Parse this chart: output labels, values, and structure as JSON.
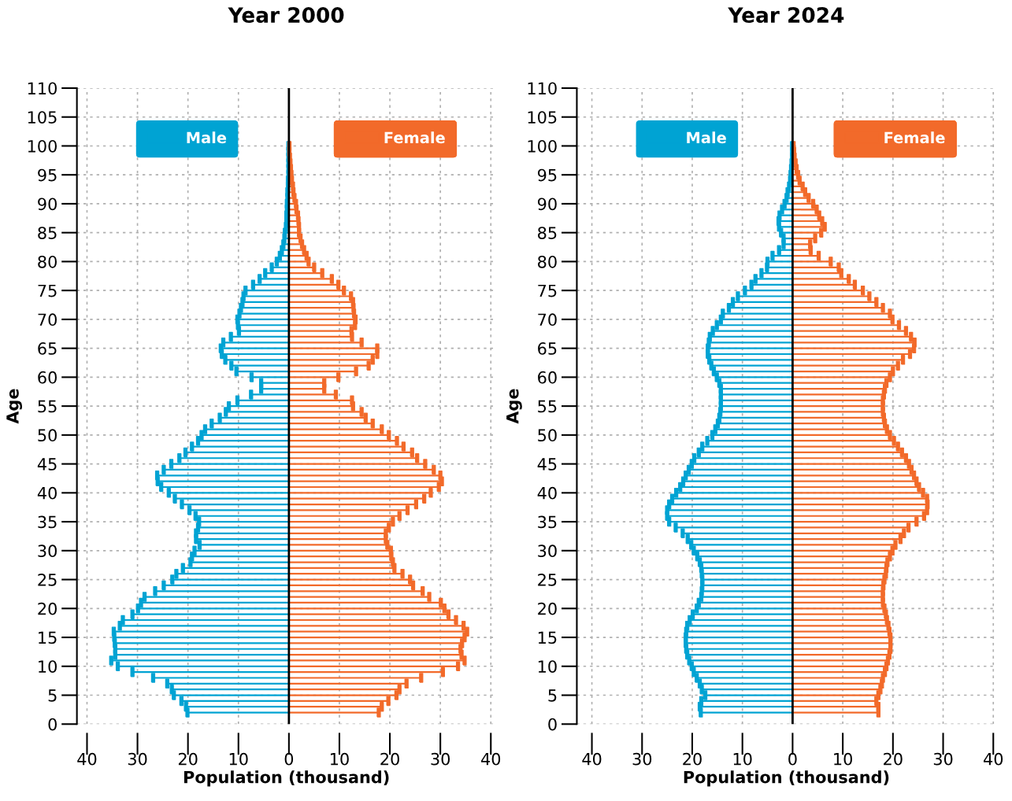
{
  "chart_data": [
    {
      "type": "lollipop",
      "orientation": "horizontal",
      "title": "Year 2000",
      "xlabel": "Population (thousand)",
      "ylabel": "Age",
      "x": [
        2,
        3,
        4,
        5,
        6,
        7,
        8,
        9,
        10,
        11,
        12,
        13,
        14,
        15,
        16,
        17,
        18,
        19,
        20,
        21,
        22,
        23,
        24,
        25,
        26,
        27,
        28,
        29,
        30,
        31,
        32,
        33,
        34,
        35,
        36,
        37,
        38,
        39,
        40,
        41,
        42,
        43,
        44,
        45,
        46,
        47,
        48,
        49,
        50,
        51,
        52,
        53,
        54,
        55,
        56,
        57,
        58,
        59,
        60,
        61,
        62,
        63,
        64,
        65,
        66,
        67,
        68,
        69,
        70,
        71,
        72,
        73,
        74,
        75,
        76,
        77,
        78,
        79,
        80,
        81,
        82,
        83,
        84,
        85,
        86,
        87,
        88,
        89,
        90,
        91,
        92,
        93,
        94,
        95,
        96,
        97,
        98,
        99,
        100
      ],
      "series": [
        {
          "name": "Male",
          "color": "#00a3d3",
          "values": [
            -20.1,
            -20.4,
            -21.3,
            -22.8,
            -23.2,
            -24.1,
            -26.9,
            -31.0,
            -33.9,
            -35.2,
            -34.4,
            -34.4,
            -34.5,
            -34.6,
            -34.7,
            -33.5,
            -32.9,
            -31.0,
            -29.9,
            -29.3,
            -28.6,
            -26.5,
            -24.8,
            -23.1,
            -22.3,
            -21.0,
            -19.5,
            -19.2,
            -18.7,
            -17.7,
            -18.4,
            -18.4,
            -18.0,
            -17.8,
            -18.5,
            -19.7,
            -21.2,
            -22.6,
            -23.8,
            -25.3,
            -26.0,
            -26.1,
            -24.8,
            -23.3,
            -21.7,
            -20.5,
            -19.2,
            -18.0,
            -17.3,
            -16.6,
            -15.3,
            -13.7,
            -12.5,
            -11.9,
            -10.2,
            -7.5,
            -5.5,
            -5.5,
            -7.4,
            -10.4,
            -11.4,
            -12.6,
            -13.3,
            -13.5,
            -13.0,
            -11.5,
            -9.9,
            -10.1,
            -10.2,
            -9.8,
            -9.5,
            -9.2,
            -9.0,
            -8.6,
            -7.1,
            -5.8,
            -4.7,
            -3.4,
            -2.4,
            -1.8,
            -1.4,
            -1.1,
            -0.9,
            -0.8,
            -0.6,
            -0.5,
            -0.5,
            -0.4,
            -0.4,
            -0.3,
            -0.3,
            -0.2,
            -0.2,
            -0.1,
            -0.1,
            -0.1,
            -0.1,
            -0.1,
            -0.1
          ]
        },
        {
          "name": "Female",
          "color": "#f26a2a",
          "values": [
            17.8,
            18.4,
            19.7,
            21.3,
            21.9,
            23.3,
            26.2,
            30.5,
            33.5,
            34.8,
            34.2,
            34.0,
            34.3,
            34.8,
            35.3,
            34.6,
            33.1,
            31.6,
            30.8,
            30.1,
            27.8,
            26.5,
            24.6,
            24.0,
            22.5,
            20.9,
            20.6,
            20.3,
            20.2,
            19.5,
            19.2,
            19.2,
            19.8,
            20.6,
            21.9,
            23.5,
            25.2,
            26.8,
            28.1,
            29.7,
            30.3,
            30.0,
            28.7,
            27.0,
            25.4,
            24.4,
            22.7,
            21.4,
            19.8,
            18.4,
            16.6,
            15.2,
            14.4,
            12.7,
            12.5,
            9.3,
            7.0,
            7.0,
            9.8,
            13.3,
            15.8,
            16.6,
            17.5,
            17.5,
            14.4,
            12.5,
            12.4,
            13.1,
            13.2,
            12.9,
            12.8,
            12.7,
            12.3,
            10.9,
            9.8,
            8.5,
            6.6,
            5.0,
            3.9,
            3.5,
            3.0,
            2.6,
            2.3,
            2.0,
            2.0,
            1.9,
            1.8,
            1.5,
            1.4,
            1.1,
            0.9,
            0.8,
            0.6,
            0.5,
            0.4,
            0.3,
            0.2,
            0.1,
            0.1
          ]
        }
      ],
      "xlim": [
        -42,
        41
      ],
      "ylim": [
        0,
        110
      ],
      "xticks": [
        {
          "value": -40,
          "label": "40"
        },
        {
          "value": -30,
          "label": "30"
        },
        {
          "value": -20,
          "label": "20"
        },
        {
          "value": -10,
          "label": "10"
        },
        0,
        10,
        20,
        30,
        40
      ],
      "yticks": [
        0,
        5,
        10,
        15,
        20,
        25,
        30,
        35,
        40,
        45,
        50,
        55,
        60,
        65,
        70,
        75,
        80,
        85,
        90,
        95,
        100,
        105,
        110
      ],
      "ref_lines": [
        {
          "axis": "x",
          "value": 0,
          "color": "#000000"
        }
      ],
      "grid": true,
      "legend": "top"
    },
    {
      "type": "lollipop",
      "orientation": "horizontal",
      "title": "Year 2024",
      "xlabel": "Population (thousand)",
      "ylabel": "Age",
      "x": [
        2,
        3,
        4,
        5,
        6,
        7,
        8,
        9,
        10,
        11,
        12,
        13,
        14,
        15,
        16,
        17,
        18,
        19,
        20,
        21,
        22,
        23,
        24,
        25,
        26,
        27,
        28,
        29,
        30,
        31,
        32,
        33,
        34,
        35,
        36,
        37,
        38,
        39,
        40,
        41,
        42,
        43,
        44,
        45,
        46,
        47,
        48,
        49,
        50,
        51,
        52,
        53,
        54,
        55,
        56,
        57,
        58,
        59,
        60,
        61,
        62,
        63,
        64,
        65,
        66,
        67,
        68,
        69,
        70,
        71,
        72,
        73,
        74,
        75,
        76,
        77,
        78,
        79,
        80,
        81,
        82,
        83,
        84,
        85,
        86,
        87,
        88,
        89,
        90,
        91,
        92,
        93,
        94,
        95,
        96,
        97,
        98,
        99,
        100
      ],
      "series": [
        {
          "name": "Male",
          "color": "#00a3d3",
          "values": [
            -18.3,
            -18.5,
            -18.2,
            -17.4,
            -18.1,
            -18.5,
            -19.1,
            -19.7,
            -20.1,
            -20.6,
            -21.0,
            -21.2,
            -21.3,
            -21.3,
            -21.2,
            -21.0,
            -20.5,
            -19.9,
            -19.1,
            -18.7,
            -18.2,
            -18.1,
            -18.0,
            -18.0,
            -18.1,
            -18.2,
            -18.5,
            -19.0,
            -19.7,
            -20.2,
            -20.9,
            -21.9,
            -23.3,
            -24.6,
            -25.0,
            -25.0,
            -24.6,
            -24.0,
            -23.2,
            -22.4,
            -21.8,
            -21.3,
            -20.7,
            -20.1,
            -19.6,
            -18.7,
            -18.0,
            -17.0,
            -16.0,
            -15.4,
            -14.9,
            -14.6,
            -14.4,
            -14.3,
            -14.3,
            -14.3,
            -14.3,
            -14.6,
            -15.1,
            -15.7,
            -16.2,
            -16.6,
            -16.9,
            -16.9,
            -16.7,
            -16.5,
            -15.9,
            -15.1,
            -14.3,
            -13.9,
            -12.7,
            -11.9,
            -10.9,
            -9.5,
            -8.2,
            -7.4,
            -6.2,
            -5.1,
            -5.0,
            -4.0,
            -2.7,
            -1.8,
            -1.8,
            -2.3,
            -2.7,
            -2.8,
            -2.6,
            -2.1,
            -1.6,
            -1.2,
            -1.0,
            -0.7,
            -0.5,
            -0.4,
            -0.3,
            -0.2,
            -0.1,
            -0.1,
            -0.1
          ]
        },
        {
          "name": "Female",
          "color": "#f26a2a",
          "values": [
            17.1,
            17.1,
            16.7,
            17.1,
            17.5,
            17.8,
            18.0,
            18.4,
            18.7,
            19.0,
            19.3,
            19.5,
            19.5,
            19.5,
            19.3,
            19.1,
            18.8,
            18.6,
            18.3,
            18.0,
            18.0,
            18.0,
            18.1,
            18.3,
            18.6,
            18.7,
            18.9,
            19.4,
            19.9,
            20.5,
            21.5,
            22.2,
            23.1,
            24.7,
            26.2,
            26.8,
            26.9,
            26.8,
            26.0,
            25.2,
            24.7,
            24.2,
            23.7,
            23.2,
            22.6,
            21.8,
            21.0,
            20.2,
            19.4,
            18.8,
            18.4,
            18.2,
            18.0,
            18.0,
            18.0,
            18.2,
            18.4,
            18.7,
            19.4,
            20.0,
            21.0,
            22.0,
            23.4,
            24.2,
            24.3,
            23.6,
            22.6,
            21.2,
            19.9,
            19.4,
            18.0,
            16.7,
            15.3,
            14.0,
            12.4,
            11.2,
            9.7,
            9.2,
            7.6,
            5.2,
            3.6,
            3.5,
            4.5,
            5.7,
            6.4,
            5.9,
            5.3,
            4.8,
            4.1,
            3.2,
            2.5,
            2.0,
            1.4,
            1.1,
            0.8,
            0.6,
            0.4,
            0.3,
            0.2
          ]
        }
      ],
      "xlim": [
        -43,
        40.5
      ],
      "ylim": [
        0,
        110
      ],
      "xticks": [
        {
          "value": -40,
          "label": "40"
        },
        {
          "value": -30,
          "label": "30"
        },
        {
          "value": -20,
          "label": "20"
        },
        {
          "value": -10,
          "label": "10"
        },
        0,
        10,
        20,
        30,
        40
      ],
      "yticks": [
        0,
        5,
        10,
        15,
        20,
        25,
        30,
        35,
        40,
        45,
        50,
        55,
        60,
        65,
        70,
        75,
        80,
        85,
        90,
        95,
        100,
        105,
        110
      ],
      "ref_lines": [
        {
          "axis": "x",
          "value": 0,
          "color": "#000000"
        }
      ],
      "grid": true,
      "legend": "top"
    }
  ]
}
